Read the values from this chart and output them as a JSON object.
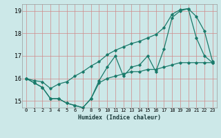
{
  "xlabel": "Humidex (Indice chaleur)",
  "ylabel": "",
  "bg_color": "#cce8e8",
  "grid_color_v": "#e08080",
  "grid_color_h": "#e08080",
  "line_color": "#1a7a6a",
  "x_values": [
    0,
    1,
    2,
    3,
    4,
    5,
    6,
    7,
    8,
    9,
    10,
    11,
    12,
    13,
    14,
    15,
    16,
    17,
    18,
    19,
    20,
    21,
    22,
    23
  ],
  "y_main": [
    16.0,
    15.8,
    15.6,
    15.1,
    15.1,
    14.9,
    14.8,
    14.7,
    15.1,
    15.9,
    16.5,
    17.0,
    16.1,
    16.5,
    16.6,
    17.0,
    16.3,
    17.3,
    18.7,
    19.0,
    19.1,
    17.8,
    17.0,
    16.7
  ],
  "y_upper": [
    16.0,
    15.9,
    15.85,
    15.55,
    15.75,
    15.85,
    16.1,
    16.3,
    16.55,
    16.75,
    17.05,
    17.25,
    17.4,
    17.55,
    17.65,
    17.8,
    17.95,
    18.25,
    18.85,
    19.05,
    19.1,
    18.75,
    18.1,
    16.75
  ],
  "y_lower": [
    16.0,
    15.8,
    15.6,
    15.1,
    15.1,
    14.9,
    14.8,
    14.7,
    15.1,
    15.8,
    16.0,
    16.1,
    16.2,
    16.3,
    16.3,
    16.4,
    16.4,
    16.5,
    16.6,
    16.7,
    16.7,
    16.7,
    16.7,
    16.7
  ],
  "ylim": [
    14.7,
    19.3
  ],
  "xlim": [
    -0.5,
    23.5
  ],
  "yticks": [
    15,
    16,
    17,
    18,
    19
  ],
  "xticks": [
    0,
    1,
    2,
    3,
    4,
    5,
    6,
    7,
    8,
    9,
    10,
    11,
    12,
    13,
    14,
    15,
    16,
    17,
    18,
    19,
    20,
    21,
    22,
    23
  ]
}
